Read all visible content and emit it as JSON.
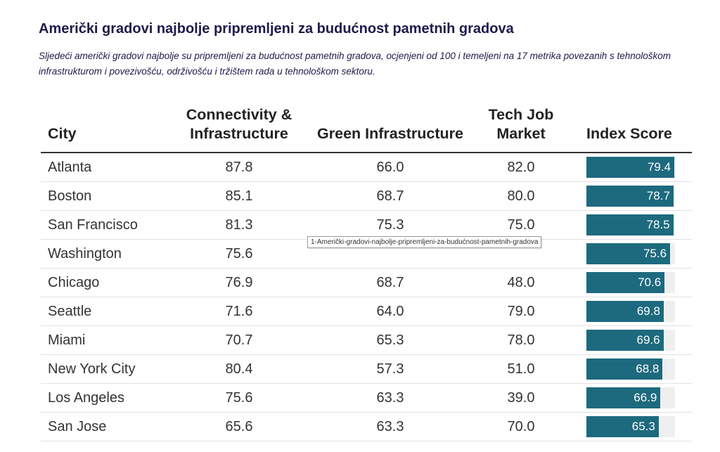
{
  "title": "Američki gradovi najbolje pripremljeni za budućnost pametnih gradova",
  "subtitle": "Sljedeći američki gradovi najbolje su pripremljeni za budućnost pametnih gradova, ocjenjeni od 100 i temeljeni na 17 metrika povezanih s tehnološkom infrastrukturom i povezivošću, održivošću i tržištem rada u tehnološkom sektoru.",
  "table": {
    "headers": {
      "city": "City",
      "connectivity": "Connectivity & Infrastructure",
      "green": "Green Infrastructure",
      "tech_job": "Tech Job Market",
      "index": "Index Score"
    },
    "rows": [
      {
        "city": "Atlanta",
        "connectivity": "87.8",
        "green": "66.0",
        "tech_job": "82.0",
        "index": "79.4"
      },
      {
        "city": "Boston",
        "connectivity": "85.1",
        "green": "68.7",
        "tech_job": "80.0",
        "index": "78.7"
      },
      {
        "city": "San Francisco",
        "connectivity": "81.3",
        "green": "75.3",
        "tech_job": "75.0",
        "index": "78.5"
      },
      {
        "city": "Washington",
        "connectivity": "75.6",
        "green": "",
        "tech_job": "",
        "index": "75.6"
      },
      {
        "city": "Chicago",
        "connectivity": "76.9",
        "green": "68.7",
        "tech_job": "48.0",
        "index": "70.6"
      },
      {
        "city": "Seattle",
        "connectivity": "71.6",
        "green": "64.0",
        "tech_job": "79.0",
        "index": "69.8"
      },
      {
        "city": "Miami",
        "connectivity": "70.7",
        "green": "65.3",
        "tech_job": "78.0",
        "index": "69.6"
      },
      {
        "city": "New York City",
        "connectivity": "80.4",
        "green": "57.3",
        "tech_job": "51.0",
        "index": "68.8"
      },
      {
        "city": "Los Angeles",
        "connectivity": "75.6",
        "green": "63.3",
        "tech_job": "39.0",
        "index": "66.9"
      },
      {
        "city": "San Jose",
        "connectivity": "65.6",
        "green": "63.3",
        "tech_job": "70.0",
        "index": "65.3"
      }
    ]
  },
  "tooltip": "1-Američki-gradovi-najbolje-pripremljeni-za-budućnost-pametnih-gradova",
  "colors": {
    "bar": "#1d6a7e",
    "bar_track": "#efefef",
    "title": "#1e1a4a"
  }
}
